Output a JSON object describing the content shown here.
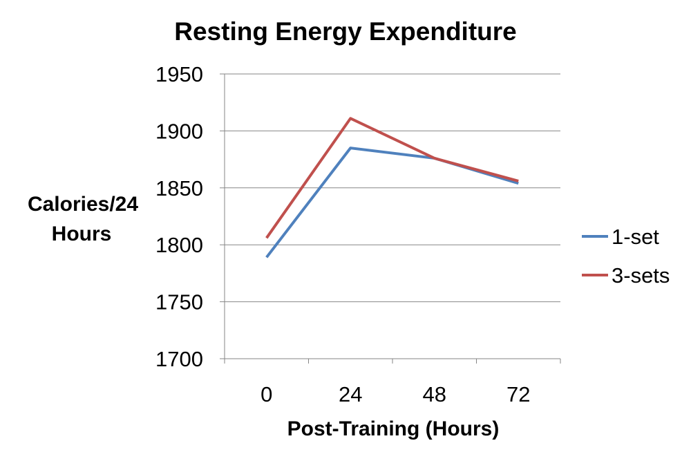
{
  "chart_data": {
    "type": "line",
    "title": "Resting Energy Expenditure",
    "xlabel": "Post-Training (Hours)",
    "ylabel_lines": [
      "Calories/24",
      "Hours"
    ],
    "categories": [
      "0",
      "24",
      "48",
      "72"
    ],
    "ylim": [
      1700,
      1950
    ],
    "yticks": [
      1700,
      1750,
      1800,
      1850,
      1900,
      1950
    ],
    "grid": true,
    "legend_position": "right",
    "series": [
      {
        "name": "1-set",
        "color": "#4F81BD",
        "values": [
          1789,
          1885,
          1876,
          1854
        ]
      },
      {
        "name": "3-sets",
        "color": "#C0504D",
        "values": [
          1806,
          1911,
          1876,
          1856
        ]
      }
    ]
  }
}
